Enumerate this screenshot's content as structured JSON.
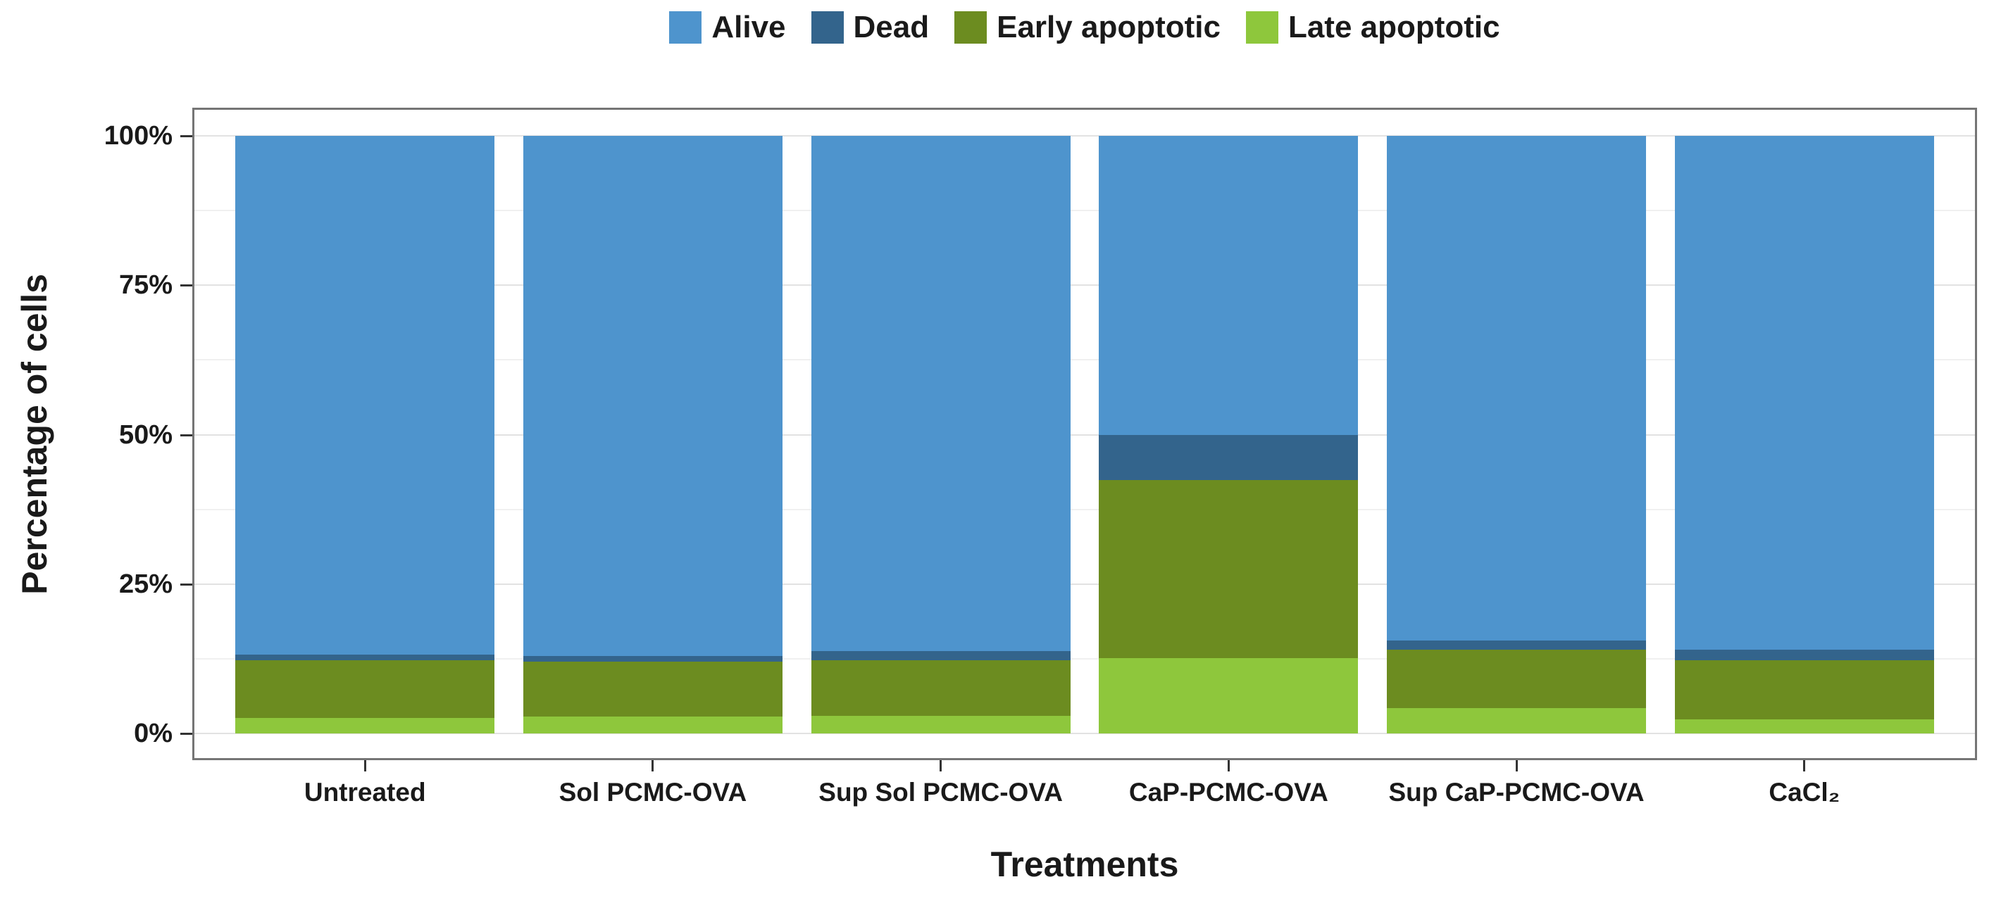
{
  "legend": {
    "position": "top",
    "items": [
      {
        "label": "Alive",
        "color": "#4e94cd"
      },
      {
        "label": "Dead",
        "color": "#33648c"
      },
      {
        "label": "Early apoptotic",
        "color": "#6c8c20"
      },
      {
        "label": "Late apoptotic",
        "color": "#8ec73c"
      }
    ]
  },
  "y_axis": {
    "title": "Percentage of cells",
    "ticks": [
      {
        "label": "0%",
        "value": 0
      },
      {
        "label": "25%",
        "value": 25
      },
      {
        "label": "50%",
        "value": 50
      },
      {
        "label": "75%",
        "value": 75
      },
      {
        "label": "100%",
        "value": 100
      }
    ]
  },
  "x_axis": {
    "title": "Treatments"
  },
  "chart_data": {
    "type": "bar",
    "stacked": true,
    "normalized_to_100": true,
    "title": "",
    "xlabel": "Treatments",
    "ylabel": "Percentage of cells",
    "ylim": [
      0,
      100
    ],
    "y_major_ticks": [
      0,
      25,
      50,
      75,
      100
    ],
    "y_minor_ticks": [
      12.5,
      37.5,
      62.5,
      87.5
    ],
    "grid": true,
    "legend_position": "top",
    "categories": [
      "Untreated",
      "Sol PCMC-OVA",
      "Sup Sol PCMC-OVA",
      "CaP-PCMC-OVA",
      "Sup CaP-PCMC-OVA",
      "CaCl₂"
    ],
    "series": [
      {
        "name": "Alive",
        "color": "#4e94cd",
        "values": [
          86.8,
          87.0,
          86.2,
          50.1,
          84.5,
          86.0
        ]
      },
      {
        "name": "Dead",
        "color": "#33648c",
        "values": [
          1.0,
          1.0,
          1.6,
          7.5,
          1.5,
          1.8
        ]
      },
      {
        "name": "Early apoptotic",
        "color": "#6c8c20",
        "values": [
          9.6,
          9.2,
          9.2,
          29.8,
          9.8,
          9.8
        ]
      },
      {
        "name": "Late apoptotic",
        "color": "#8ec73c",
        "values": [
          2.6,
          2.8,
          3.0,
          12.6,
          4.2,
          2.4
        ]
      }
    ],
    "stack_order_bottom_to_top": [
      "Late apoptotic",
      "Early apoptotic",
      "Dead",
      "Alive"
    ]
  }
}
